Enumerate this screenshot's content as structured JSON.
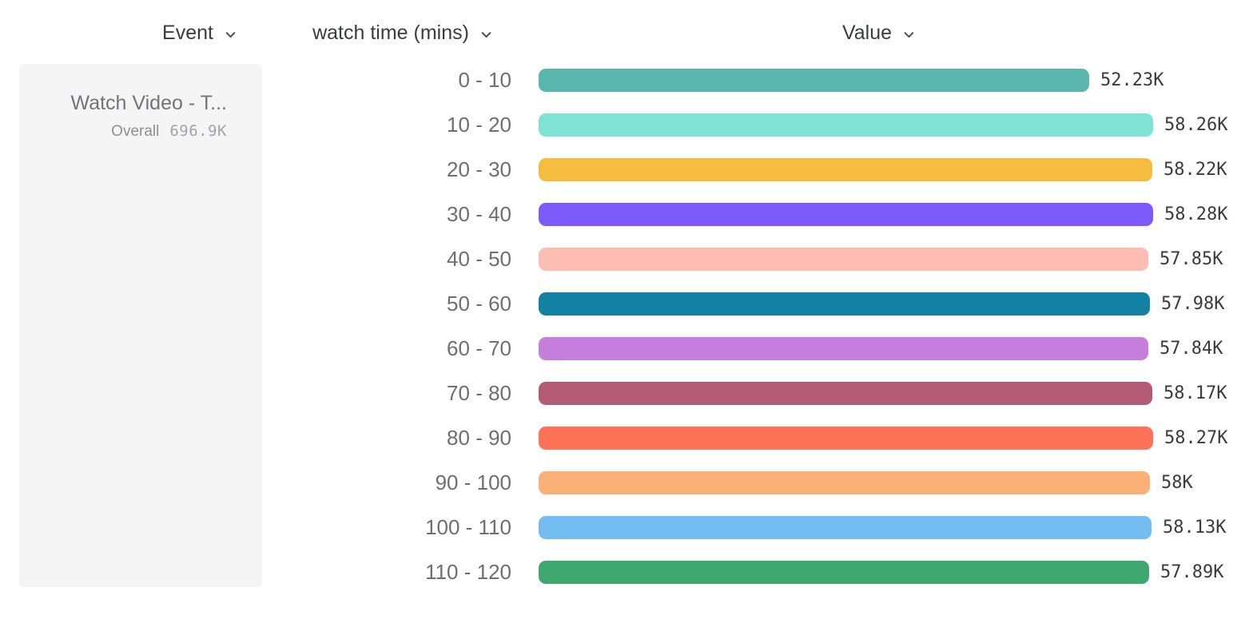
{
  "header": {
    "event": {
      "label": "Event"
    },
    "breakdown": {
      "label": "watch time (mins)"
    },
    "value": {
      "label": "Value"
    }
  },
  "event_card": {
    "title": "Watch Video - T...",
    "overall_label": "Overall",
    "overall_value": "696.9K"
  },
  "chart_data": {
    "type": "bar",
    "orientation": "horizontal",
    "title": "",
    "xlabel": "Value",
    "ylabel": "watch time (mins)",
    "categories": [
      "0 - 10",
      "10 - 20",
      "20 - 30",
      "30 - 40",
      "40 - 50",
      "50 - 60",
      "60 - 70",
      "70 - 80",
      "80 - 90",
      "90 - 100",
      "100 - 110",
      "110 - 120"
    ],
    "values": [
      52230,
      58260,
      58220,
      58280,
      57850,
      57980,
      57840,
      58170,
      58270,
      58000,
      58130,
      57890
    ],
    "value_labels": [
      "52.23K",
      "58.26K",
      "58.22K",
      "58.28K",
      "57.85K",
      "57.98K",
      "57.84K",
      "58.17K",
      "58.27K",
      "58K",
      "58.13K",
      "57.89K"
    ],
    "colors": [
      "#5BB7AE",
      "#7EE2D4",
      "#F6BC3D",
      "#7B59FA",
      "#FEBDB3",
      "#1381A3",
      "#C57EDC",
      "#B35A74",
      "#FE7258",
      "#FBB077",
      "#74BDF2",
      "#3EA86F"
    ],
    "xlim": [
      0,
      58280
    ],
    "grid": false,
    "legend": false
  },
  "ui_colors": {
    "card_background": "#f5f5f6",
    "header_text": "#3b3b44",
    "category_text": "#6e6e77",
    "value_text": "#3a3a42",
    "muted_text": "#8e8e96"
  }
}
